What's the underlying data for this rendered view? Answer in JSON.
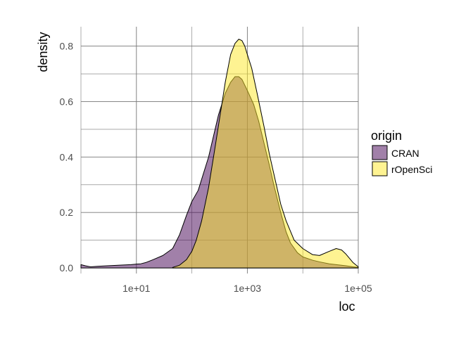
{
  "chart_data": {
    "type": "area",
    "xlabel": "loc",
    "ylabel": "density",
    "x_scale": "log10",
    "xlim": [
      1,
      100000
    ],
    "ylim": [
      -0.02,
      0.87
    ],
    "x_ticks": [
      {
        "value": 10,
        "label": "1e+01"
      },
      {
        "value": 1000,
        "label": "1e+03"
      },
      {
        "value": 100000,
        "label": "1e+05"
      }
    ],
    "y_ticks": [
      {
        "value": 0.0,
        "label": "0.0"
      },
      {
        "value": 0.2,
        "label": "0.2"
      },
      {
        "value": 0.4,
        "label": "0.4"
      },
      {
        "value": 0.6,
        "label": "0.6"
      },
      {
        "value": 0.8,
        "label": "0.8"
      }
    ],
    "grid": true,
    "legend": {
      "title": "origin",
      "position": "right"
    },
    "series": [
      {
        "name": "CRAN",
        "color": "#440154",
        "fill_opacity": 0.5,
        "x": [
          1,
          1.2,
          1.5,
          2,
          3,
          5,
          8,
          10,
          12,
          15,
          20,
          30,
          45,
          60,
          80,
          100,
          130,
          200,
          300,
          400,
          500,
          600,
          700,
          800,
          1000,
          1300,
          1600,
          2000,
          2500,
          3000,
          4000,
          5000,
          6000,
          8000,
          10000,
          15000,
          20000,
          30000,
          40000,
          60000,
          80000,
          100000
        ],
        "y": [
          0.012,
          0.008,
          0.004,
          0.006,
          0.008,
          0.01,
          0.012,
          0.014,
          0.015,
          0.02,
          0.03,
          0.045,
          0.07,
          0.12,
          0.19,
          0.24,
          0.28,
          0.4,
          0.55,
          0.63,
          0.67,
          0.69,
          0.69,
          0.68,
          0.64,
          0.59,
          0.53,
          0.45,
          0.37,
          0.3,
          0.2,
          0.13,
          0.09,
          0.055,
          0.04,
          0.028,
          0.022,
          0.015,
          0.012,
          0.008,
          0.004,
          0.002
        ]
      },
      {
        "name": "rOpenSci",
        "color": "#FDE725",
        "fill_opacity": 0.5,
        "x": [
          45,
          60,
          80,
          100,
          120,
          150,
          200,
          250,
          300,
          400,
          500,
          600,
          700,
          800,
          900,
          1000,
          1200,
          1500,
          2000,
          2500,
          3000,
          4000,
          5000,
          7000,
          10000,
          15000,
          20000,
          30000,
          40000,
          50000,
          60000,
          80000,
          100000
        ],
        "y": [
          0.002,
          0.01,
          0.03,
          0.06,
          0.1,
          0.17,
          0.29,
          0.41,
          0.51,
          0.67,
          0.77,
          0.81,
          0.825,
          0.82,
          0.8,
          0.77,
          0.72,
          0.63,
          0.51,
          0.41,
          0.34,
          0.23,
          0.17,
          0.1,
          0.07,
          0.048,
          0.045,
          0.06,
          0.07,
          0.065,
          0.05,
          0.02,
          0.004
        ]
      }
    ]
  }
}
